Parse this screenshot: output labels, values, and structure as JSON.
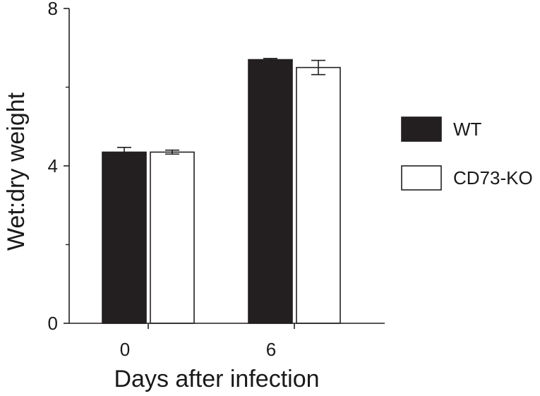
{
  "chart_data": {
    "type": "bar",
    "categories": [
      "0",
      "6"
    ],
    "series": [
      {
        "name": "WT",
        "values": [
          4.35,
          6.7
        ],
        "errors": [
          0.12,
          0.03
        ],
        "fill": "#231f20"
      },
      {
        "name": "CD73-KO",
        "values": [
          4.35,
          6.5
        ],
        "errors": [
          0.05,
          0.18
        ],
        "fill": "#ffffff"
      }
    ],
    "xlabel": "Days after infection",
    "ylabel": "Wet:dry weight",
    "ylim": [
      0,
      8
    ],
    "yticks": [
      0,
      4,
      8
    ],
    "ytick_labels": [
      "0",
      "4",
      "8"
    ],
    "minor_yticks": [
      2,
      6
    ],
    "grid": false,
    "legend_position": "right",
    "stroke_color": "#231f20"
  }
}
